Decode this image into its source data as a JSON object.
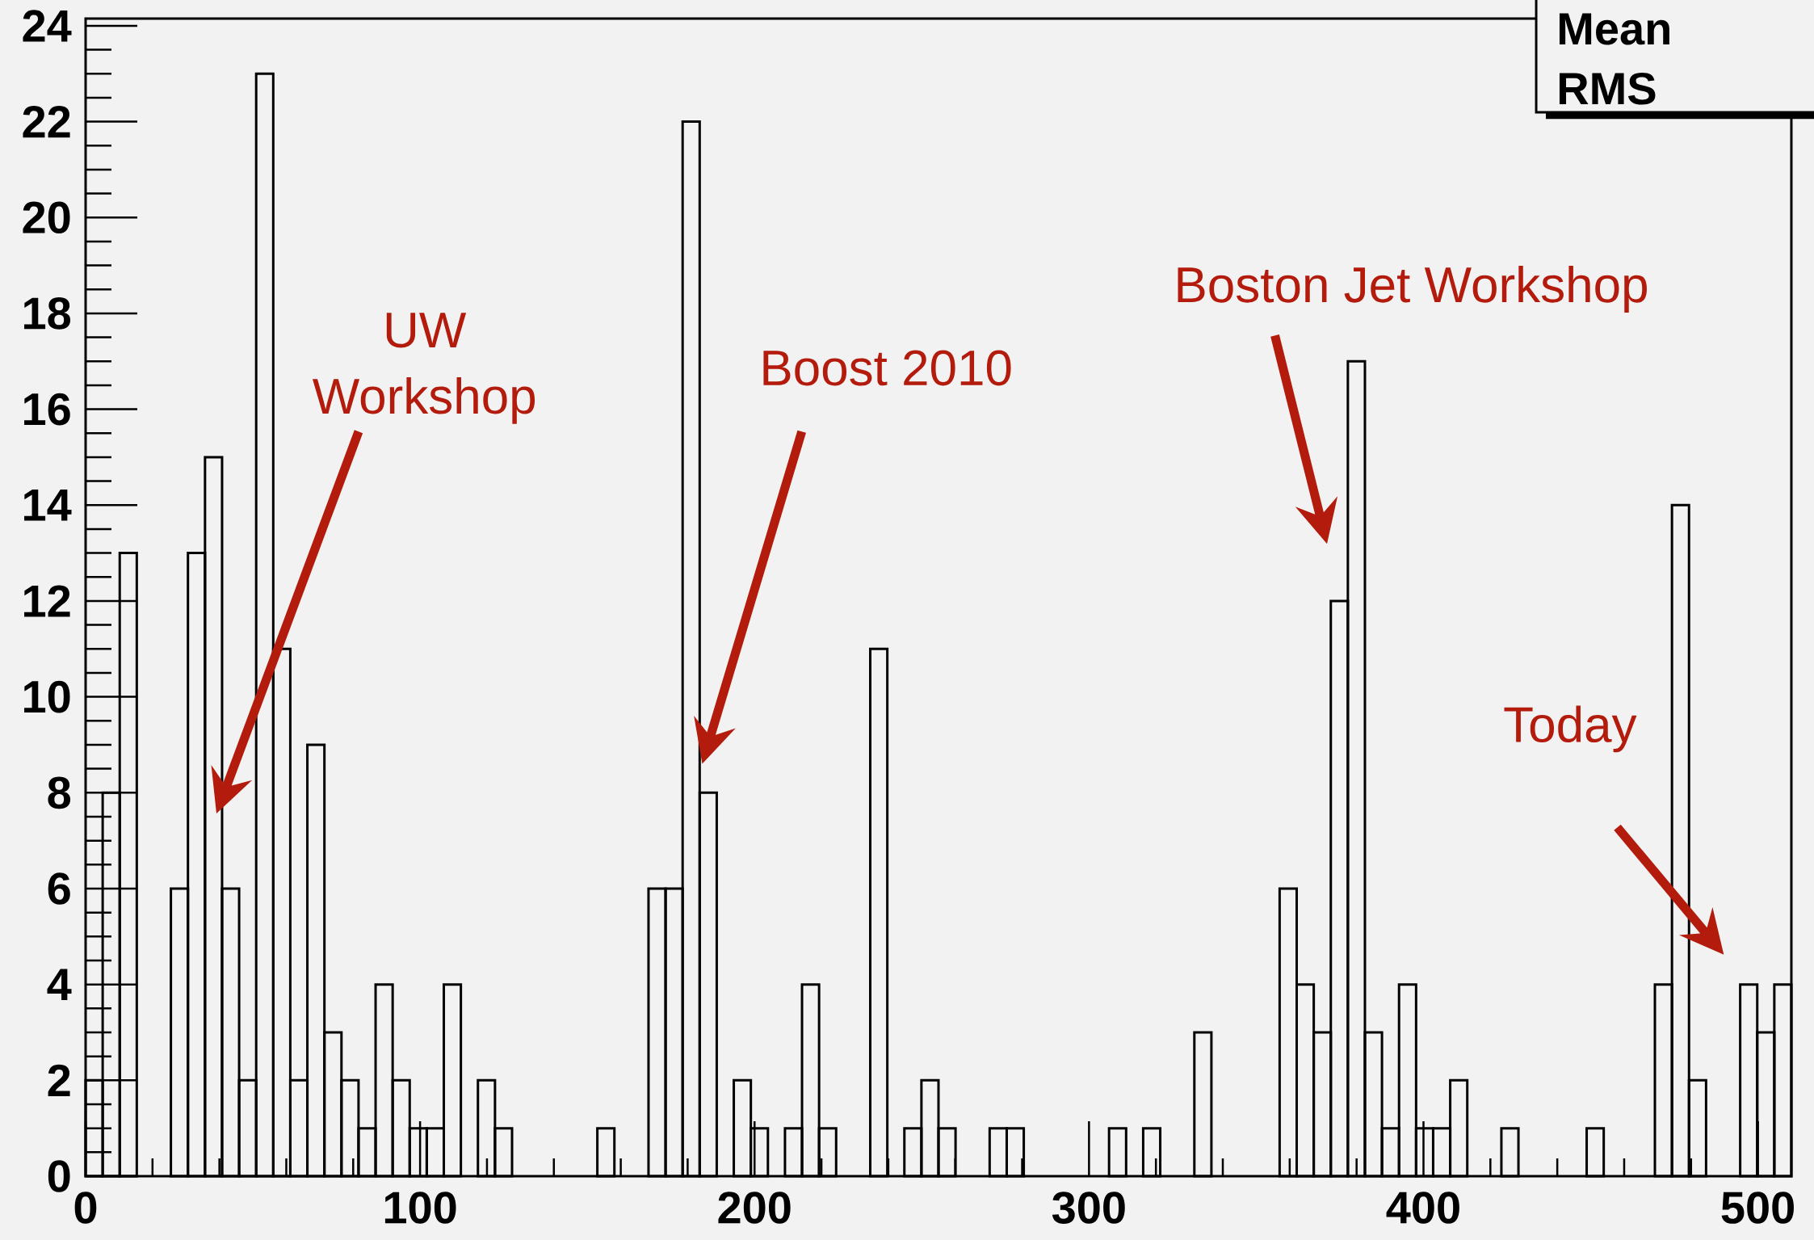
{
  "chart_data": {
    "type": "histogram",
    "bins": [
      0,
      5.1,
      10.2,
      15.3,
      20.4,
      25.5,
      30.6,
      35.7,
      40.8,
      45.9,
      51,
      56.1,
      61.2,
      66.3,
      71.4,
      76.5,
      81.6,
      86.7,
      91.8,
      96.9,
      102,
      107.1,
      112.2,
      117.3,
      122.4,
      127.5,
      132.6,
      137.7,
      142.8,
      147.9,
      153,
      158.1,
      163.2,
      168.3,
      173.4,
      178.5,
      183.6,
      188.7,
      193.8,
      198.9,
      204,
      209.1,
      214.2,
      219.3,
      224.4,
      229.5,
      234.6,
      239.7,
      244.8,
      249.9,
      255,
      260.1,
      265.2,
      270.3,
      275.4,
      280.5,
      285.6,
      290.7,
      295.8,
      300.9,
      306,
      311.1,
      316.2,
      321.3,
      326.4,
      331.5,
      336.6,
      341.7,
      346.8,
      351.9,
      357,
      362.1,
      367.2,
      372.3,
      377.4,
      382.5,
      387.6,
      392.7,
      397.8,
      402.9,
      408,
      413.1,
      418.2,
      423.3,
      428.4,
      433.5,
      438.6,
      443.7,
      448.8,
      453.9,
      459,
      464.1,
      469.2,
      474.3,
      479.4,
      484.5,
      489.6,
      494.7,
      499.8,
      504.9,
      510
    ],
    "values": [
      2,
      8,
      13,
      0,
      0,
      6,
      13,
      15,
      6,
      2,
      23,
      11,
      2,
      9,
      3,
      2,
      1,
      4,
      2,
      1,
      1,
      4,
      0,
      2,
      1,
      0,
      0,
      0,
      0,
      0,
      1,
      0,
      0,
      6,
      6,
      22,
      8,
      0,
      2,
      1,
      0,
      1,
      4,
      1,
      0,
      0,
      11,
      0,
      1,
      2,
      1,
      0,
      0,
      1,
      1,
      0,
      0,
      0,
      0,
      0,
      1,
      0,
      1,
      0,
      0,
      3,
      0,
      0,
      0,
      0,
      6,
      4,
      3,
      12,
      17,
      3,
      1,
      4,
      1,
      1,
      2,
      0,
      0,
      1,
      0,
      0,
      0,
      0,
      1,
      0,
      0,
      0,
      4,
      14,
      2,
      0,
      0,
      4,
      3,
      4
    ],
    "color": "#000000",
    "xlim": [
      0,
      510
    ],
    "ylim": [
      0,
      24.15
    ],
    "xticks": [
      0,
      100,
      200,
      300,
      400,
      500
    ],
    "yticks": [
      0,
      2,
      4,
      6,
      8,
      10,
      12,
      14,
      16,
      18,
      20,
      22,
      24
    ],
    "annotations": [
      "UW Workshop",
      "Boost 2010",
      "Boston Jet Workshop",
      "Today",
      "Mean",
      "RMS"
    ]
  }
}
